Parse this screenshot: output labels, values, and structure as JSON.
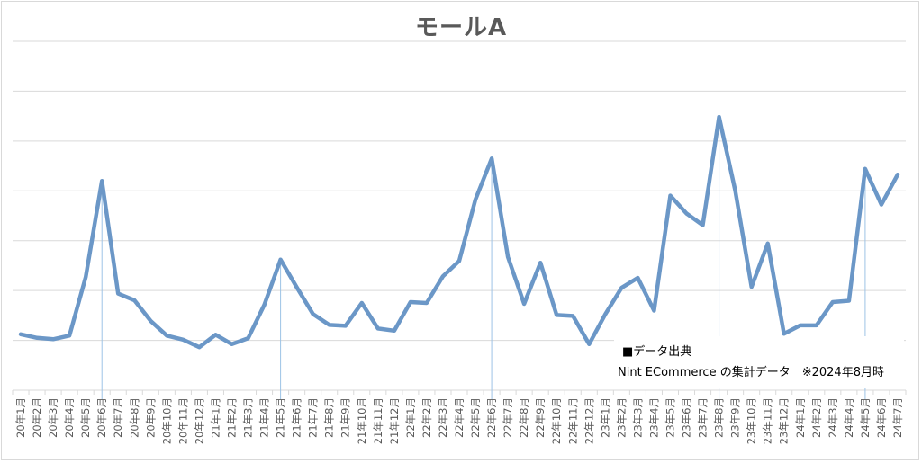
{
  "chart_data": {
    "type": "line",
    "title": "モールA",
    "xlabel": "",
    "ylabel": "",
    "grid": true,
    "y_axis_labels_visible": false,
    "ylim": [
      0,
      78
    ],
    "x": [
      "20年1月",
      "20年2月",
      "20年3月",
      "20年4月",
      "20年5月",
      "20年6月",
      "20年7月",
      "20年8月",
      "20年9月",
      "20年10月",
      "20年11月",
      "20年12月",
      "21年1月",
      "21年2月",
      "21年3月",
      "21年4月",
      "21年5月",
      "21年6月",
      "21年7月",
      "21年8月",
      "21年9月",
      "21年10月",
      "21年11月",
      "21年12月",
      "22年1月",
      "22年2月",
      "22年3月",
      "22年4月",
      "22年5月",
      "22年6月",
      "22年7月",
      "22年8月",
      "22年9月",
      "22年10月",
      "22年11月",
      "22年12月",
      "23年1月",
      "23年2月",
      "23年3月",
      "23年4月",
      "23年5月",
      "23年6月",
      "23年7月",
      "23年8月",
      "23年9月",
      "23年10月",
      "23年11月",
      "23年12月",
      "24年1月",
      "24年2月",
      "24年3月",
      "24年4月",
      "24年5月",
      "24年6月",
      "24年7月"
    ],
    "series": [
      {
        "color": "#6b97c7",
        "values": [
          12.5,
          11.7,
          11.4,
          12.2,
          25.3,
          46.8,
          21.6,
          20.1,
          15.5,
          12.2,
          11.3,
          9.6,
          12.4,
          10.3,
          11.6,
          19.1,
          29.2,
          23.0,
          17.0,
          14.6,
          14.4,
          19.5,
          13.8,
          13.3,
          19.7,
          19.5,
          25.5,
          28.9,
          42.6,
          51.8,
          29.8,
          19.3,
          28.5,
          16.8,
          16.6,
          10.3,
          17.0,
          22.9,
          25.1,
          17.8,
          43.5,
          39.5,
          36.9,
          61.1,
          44.6,
          23.1,
          32.8,
          12.6,
          14.5,
          14.5,
          19.7,
          20.0,
          49.5,
          41.5,
          48.2
        ]
      }
    ],
    "reference_lines_at": [
      "20年6月",
      "21年5月",
      "22年6月",
      "23年8月",
      "24年5月"
    ]
  },
  "source": {
    "line1": "■データ出典",
    "line2": "Nint ECommerce の集計データ　※2024年8月時"
  },
  "colors": {
    "series": "#6b97c7",
    "reference_line": "#9dc3e6",
    "grid": "#d9d9d9",
    "text": "#595959"
  }
}
